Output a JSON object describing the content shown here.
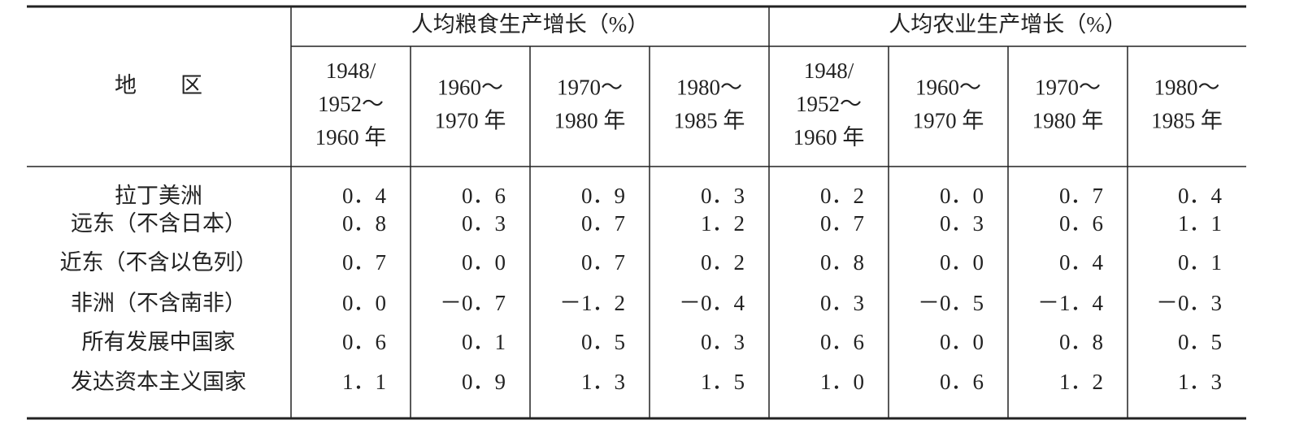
{
  "table": {
    "header": {
      "region": "地　　区",
      "groups": [
        "人均粮食生产增长（%）",
        "人均农业生产增长（%）"
      ],
      "columns": [
        [
          "1948/",
          "1952～",
          "1960 年"
        ],
        [
          "1960～",
          "1970 年"
        ],
        [
          "1970～",
          "1980 年"
        ],
        [
          "1980～",
          "1985 年"
        ],
        [
          "1948/",
          "1952～",
          "1960 年"
        ],
        [
          "1960～",
          "1970 年"
        ],
        [
          "1970～",
          "1980 年"
        ],
        [
          "1980～",
          "1985 年"
        ]
      ]
    },
    "rows": [
      {
        "region": "拉丁美洲",
        "values": [
          "0．4",
          "0．6",
          "0．9",
          "0．3",
          "0．2",
          "0．0",
          "0．7",
          "0．4"
        ]
      },
      {
        "region": "远东（不含日本）",
        "values": [
          "0．8",
          "0．3",
          "0．7",
          "1．2",
          "0．7",
          "0．3",
          "0．6",
          "1．1"
        ]
      },
      {
        "region": "近东（不含以色列）",
        "values": [
          "0．7",
          "0．0",
          "0．7",
          "0．2",
          "0．8",
          "0．0",
          "0．4",
          "0．1"
        ]
      },
      {
        "region": "非洲（不含南非）",
        "values": [
          "0．0",
          "－0．7",
          "－1．2",
          "－0．4",
          "0．3",
          "－0．5",
          "－1．4",
          "－0．3"
        ]
      },
      {
        "region": "所有发展中国家",
        "values": [
          "0．6",
          "0．1",
          "0．5",
          "0．3",
          "0．6",
          "0．0",
          "0．8",
          "0．5"
        ]
      },
      {
        "region": "发达资本主义国家",
        "values": [
          "1．1",
          "0．9",
          "1．3",
          "1．5",
          "1．0",
          "0．6",
          "1．2",
          "1．3"
        ]
      }
    ]
  }
}
